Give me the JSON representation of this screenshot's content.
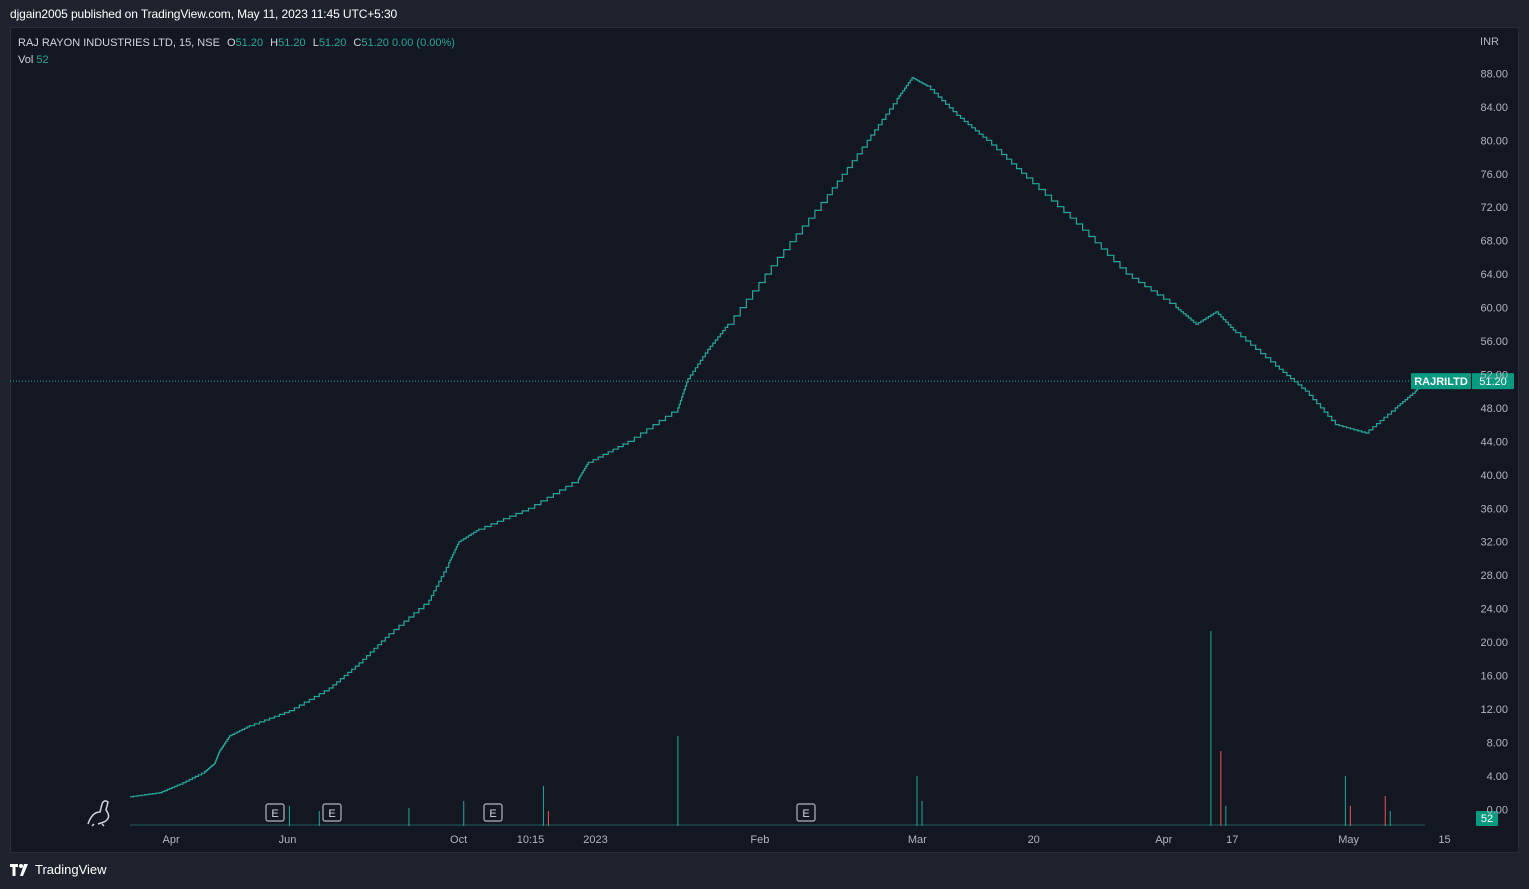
{
  "header": {
    "publisher_line": "djgain2005 published on TradingView.com, May 11, 2023 11:45 UTC+5:30"
  },
  "legend": {
    "symbol": "RAJ RAYON INDUSTRIES LTD, 15, NSE",
    "open_label": "O",
    "open": "51.20",
    "high_label": "H",
    "high": "51.20",
    "low_label": "L",
    "low": "51.20",
    "close_label": "C",
    "close": "51.20",
    "change": "0.00 (0.00%)",
    "vol_label": "Vol",
    "vol": "52"
  },
  "footer": {
    "brand": "TradingView"
  },
  "colors": {
    "up": "#26a69a",
    "down": "#ef5350",
    "background": "#131722",
    "grid_text": "#b2b5be",
    "price_tag": "#089981"
  },
  "chart_data": {
    "type": "line",
    "title": "RAJ RAYON INDUSTRIES LTD, 15, NSE",
    "currency": "INR",
    "ylim": [
      -2,
      92
    ],
    "y_ticks": [
      "88.00",
      "84.00",
      "80.00",
      "76.00",
      "72.00",
      "68.00",
      "64.00",
      "60.00",
      "56.00",
      "52.00",
      "48.00",
      "44.00",
      "40.00",
      "36.00",
      "32.00",
      "28.00",
      "24.00",
      "20.00",
      "16.00",
      "12.00",
      "8.00",
      "4.00",
      "0.00"
    ],
    "x_ticks": [
      "Apr",
      "Jun",
      "Oct",
      "10:15",
      "2023",
      "Feb",
      "Mar",
      "20",
      "Apr",
      "17",
      "May",
      "15"
    ],
    "last_price": 51.2,
    "last_price_label": "51.20",
    "symbol_tag": "RAJRILTD",
    "volume_tag": "52",
    "earnings_markers": [
      {
        "label": "E",
        "x_tick_index": 1
      },
      {
        "label": "E",
        "x_tick_index": 1.5
      },
      {
        "label": "E",
        "x_tick_index": 3
      },
      {
        "label": "E",
        "x_tick_index": 5.5
      }
    ],
    "series": [
      {
        "name": "RAJRILTD",
        "points": [
          [
            0,
            1.5
          ],
          [
            0.3,
            2.0
          ],
          [
            0.5,
            3.0
          ],
          [
            0.75,
            4.5
          ],
          [
            0.85,
            5.5
          ],
          [
            0.9,
            7.0
          ],
          [
            1.0,
            8.8
          ],
          [
            1.2,
            10.0
          ],
          [
            1.6,
            11.8
          ],
          [
            2.0,
            14.5
          ],
          [
            2.3,
            17.5
          ],
          [
            2.6,
            21.0
          ],
          [
            3.0,
            25.0
          ],
          [
            3.2,
            29.5
          ],
          [
            3.3,
            32.0
          ],
          [
            3.5,
            33.5
          ],
          [
            4.0,
            36.0
          ],
          [
            4.5,
            39.5
          ],
          [
            4.6,
            41.5
          ],
          [
            5.0,
            44.0
          ],
          [
            5.5,
            48.0
          ],
          [
            5.6,
            51.5
          ],
          [
            5.8,
            55.0
          ],
          [
            6.0,
            58.0
          ],
          [
            6.5,
            66.0
          ],
          [
            7.0,
            73.5
          ],
          [
            7.4,
            80.0
          ],
          [
            7.7,
            85.0
          ],
          [
            7.85,
            87.5
          ],
          [
            8.0,
            86.5
          ],
          [
            8.3,
            83.0
          ],
          [
            8.6,
            80.0
          ],
          [
            9.0,
            75.5
          ],
          [
            9.5,
            70.0
          ],
          [
            10.0,
            64.0
          ],
          [
            10.5,
            60.0
          ],
          [
            10.7,
            58.0
          ],
          [
            10.9,
            59.5
          ],
          [
            11.1,
            57.0
          ],
          [
            11.5,
            53.0
          ],
          [
            11.8,
            50.0
          ],
          [
            12.1,
            46.0
          ],
          [
            12.4,
            45.0
          ],
          [
            12.7,
            48.0
          ],
          [
            12.9,
            50.0
          ],
          [
            13.0,
            51.2
          ]
        ]
      }
    ],
    "volume": {
      "name": "Vol",
      "spikes": [
        [
          4.15,
          4.0,
          "up"
        ],
        [
          4.2,
          1.5,
          "down"
        ],
        [
          5.5,
          9.0,
          "up"
        ],
        [
          7.9,
          5.0,
          "up"
        ],
        [
          7.95,
          2.5,
          "up"
        ],
        [
          10.85,
          19.5,
          "up"
        ],
        [
          10.95,
          7.5,
          "down"
        ],
        [
          11.0,
          2.0,
          "up"
        ],
        [
          12.2,
          5.0,
          "up"
        ],
        [
          12.25,
          2.0,
          "down"
        ],
        [
          12.6,
          3.0,
          "down"
        ],
        [
          12.65,
          1.5,
          "up"
        ],
        [
          1.6,
          2.0,
          "up"
        ],
        [
          1.9,
          1.5,
          "up"
        ],
        [
          3.35,
          2.5,
          "up"
        ],
        [
          2.8,
          1.8,
          "up"
        ]
      ]
    }
  }
}
